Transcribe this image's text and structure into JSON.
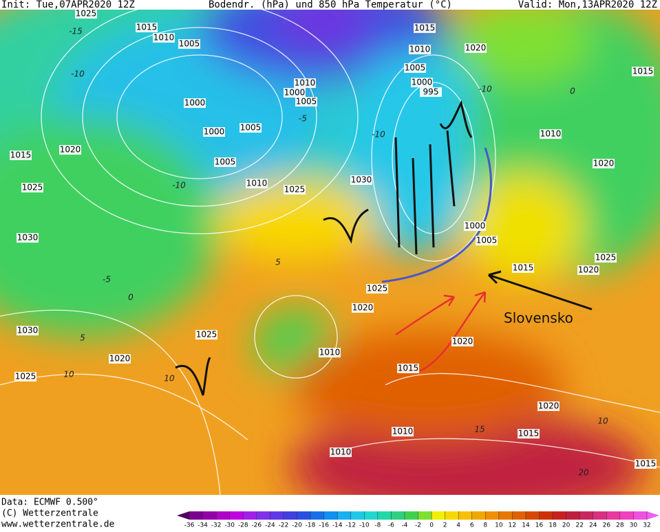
{
  "header": {
    "init": "Init: Tue,07APR2020 12Z",
    "title": "Bodendr. (hPa) und 850 hPa Temperatur (°C)",
    "valid": "Valid: Mon,13APR2020 12Z"
  },
  "map": {
    "isobar_labels": [
      "1025",
      "1015",
      "1010",
      "1005",
      "1000",
      "1000",
      "1005",
      "1005",
      "1010",
      "1010",
      "1000",
      "1005",
      "1015",
      "1010",
      "1005",
      "1000",
      "995",
      "1020",
      "1015",
      "1010",
      "1020",
      "1020",
      "1015",
      "1025",
      "1030",
      "1030",
      "1025",
      "1000",
      "1005",
      "1015",
      "1025",
      "1020",
      "1025",
      "1020",
      "1030",
      "1025",
      "1020",
      "1025",
      "1010",
      "1020",
      "1015",
      "1020",
      "1010",
      "1015",
      "1010",
      "1015"
    ],
    "temperature_labels": [
      "-15",
      "-10",
      "-5",
      "-10",
      "-5",
      "0",
      "5",
      "10",
      "5",
      "10",
      "15",
      "10",
      "20",
      "-10",
      "0",
      "-10"
    ],
    "annotation": "Slovensko"
  },
  "footer": {
    "data": "Data: ECMWF   0.500°",
    "copyright": "(C) Wetterzentrale",
    "url": "www.wetterzentrale.de"
  },
  "colorbar": {
    "ticks": [
      -36,
      -34,
      -32,
      -30,
      -28,
      -26,
      -24,
      -22,
      -20,
      -18,
      -16,
      -14,
      -12,
      -10,
      -8,
      -6,
      -4,
      -2,
      0,
      2,
      4,
      6,
      8,
      10,
      12,
      14,
      16,
      18,
      20,
      22,
      24,
      26,
      28,
      30,
      32
    ],
    "colors": [
      "#500060",
      "#7a0090",
      "#9400a8",
      "#ae00c8",
      "#c000e0",
      "#a020e8",
      "#8030e8",
      "#6038e8",
      "#4040e0",
      "#2850e0",
      "#1870e8",
      "#1090f0",
      "#18b0f0",
      "#20c8e8",
      "#20d8d0",
      "#20d8a8",
      "#30d080",
      "#40d050",
      "#80e030",
      "#f0f000",
      "#f8d800",
      "#f8c000",
      "#f0a800",
      "#f09000",
      "#e87800",
      "#e06000",
      "#d84800",
      "#d03000",
      "#c82020",
      "#c02040",
      "#c82860",
      "#d83080",
      "#e838a0",
      "#f040c0",
      "#f050e0",
      "#f060f0"
    ]
  }
}
